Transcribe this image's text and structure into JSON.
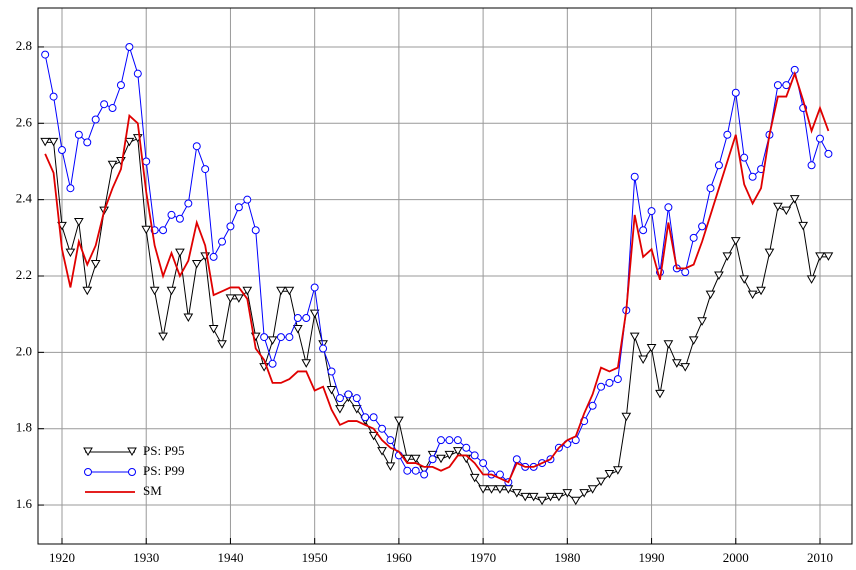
{
  "chart_data": {
    "type": "line",
    "x": [
      1918,
      1919,
      1920,
      1921,
      1922,
      1923,
      1924,
      1925,
      1926,
      1927,
      1928,
      1929,
      1930,
      1931,
      1932,
      1933,
      1934,
      1935,
      1936,
      1937,
      1938,
      1939,
      1940,
      1941,
      1942,
      1943,
      1944,
      1945,
      1946,
      1947,
      1948,
      1949,
      1950,
      1951,
      1952,
      1953,
      1954,
      1955,
      1956,
      1957,
      1958,
      1959,
      1960,
      1961,
      1962,
      1963,
      1964,
      1965,
      1966,
      1967,
      1968,
      1969,
      1970,
      1971,
      1972,
      1973,
      1974,
      1975,
      1976,
      1977,
      1978,
      1979,
      1980,
      1981,
      1982,
      1983,
      1984,
      1985,
      1986,
      1987,
      1988,
      1989,
      1990,
      1991,
      1992,
      1993,
      1994,
      1995,
      1996,
      1997,
      1998,
      1999,
      2000,
      2001,
      2002,
      2003,
      2004,
      2005,
      2006,
      2007,
      2008,
      2009,
      2010,
      2011
    ],
    "series": [
      {
        "name": "PS: P95",
        "color": "#000000",
        "marker": "triangle",
        "values": [
          2.55,
          2.55,
          2.33,
          2.26,
          2.34,
          2.16,
          2.23,
          2.37,
          2.49,
          2.5,
          2.55,
          2.56,
          2.32,
          2.16,
          2.04,
          2.16,
          2.26,
          2.09,
          2.23,
          2.25,
          2.06,
          2.02,
          2.14,
          2.14,
          2.16,
          2.04,
          1.96,
          2.03,
          2.16,
          2.16,
          2.06,
          1.97,
          2.1,
          2.02,
          1.9,
          1.85,
          1.88,
          1.85,
          1.82,
          1.78,
          1.74,
          1.7,
          1.82,
          1.72,
          1.72,
          1.69,
          1.73,
          1.72,
          1.73,
          1.74,
          1.72,
          1.67,
          1.64,
          1.64,
          1.64,
          1.64,
          1.63,
          1.62,
          1.62,
          1.61,
          1.62,
          1.62,
          1.63,
          1.61,
          1.63,
          1.64,
          1.66,
          1.68,
          1.69,
          1.83,
          2.04,
          1.98,
          2.01,
          1.89,
          2.02,
          1.97,
          1.96,
          2.03,
          2.08,
          2.15,
          2.2,
          2.25,
          2.29,
          2.19,
          2.15,
          2.16,
          2.26,
          2.38,
          2.37,
          2.4,
          2.33,
          2.19,
          2.25,
          2.25
        ]
      },
      {
        "name": "PS: P99",
        "color": "#0000ff",
        "marker": "circle",
        "values": [
          2.78,
          2.67,
          2.53,
          2.43,
          2.57,
          2.55,
          2.61,
          2.65,
          2.64,
          2.7,
          2.8,
          2.73,
          2.5,
          2.32,
          2.32,
          2.36,
          2.35,
          2.39,
          2.54,
          2.48,
          2.25,
          2.29,
          2.33,
          2.38,
          2.4,
          2.32,
          2.04,
          1.97,
          2.04,
          2.04,
          2.09,
          2.09,
          2.17,
          2.01,
          1.95,
          1.88,
          1.89,
          1.88,
          1.83,
          1.83,
          1.8,
          1.77,
          1.73,
          1.69,
          1.69,
          1.68,
          1.72,
          1.77,
          1.77,
          1.77,
          1.75,
          1.73,
          1.71,
          1.68,
          1.68,
          1.66,
          1.72,
          1.7,
          1.7,
          1.71,
          1.72,
          1.75,
          1.76,
          1.77,
          1.82,
          1.86,
          1.91,
          1.92,
          1.93,
          2.11,
          2.46,
          2.32,
          2.37,
          2.21,
          2.38,
          2.22,
          2.21,
          2.3,
          2.33,
          2.43,
          2.49,
          2.57,
          2.68,
          2.51,
          2.46,
          2.48,
          2.57,
          2.7,
          2.7,
          2.74,
          2.64,
          2.49,
          2.56,
          2.52
        ]
      },
      {
        "name": "SM",
        "color": "#e00000",
        "values": [
          2.52,
          2.47,
          2.27,
          2.17,
          2.29,
          2.23,
          2.28,
          2.37,
          2.43,
          2.48,
          2.62,
          2.6,
          2.42,
          2.28,
          2.2,
          2.26,
          2.2,
          2.24,
          2.34,
          2.28,
          2.15,
          2.16,
          2.17,
          2.17,
          2.14,
          2.01,
          1.98,
          1.92,
          1.92,
          1.93,
          1.95,
          1.95,
          1.9,
          1.91,
          1.85,
          1.81,
          1.82,
          1.82,
          1.81,
          1.8,
          1.77,
          1.75,
          1.74,
          1.71,
          1.71,
          1.7,
          1.7,
          1.69,
          1.7,
          1.73,
          1.73,
          1.71,
          1.68,
          1.68,
          1.67,
          1.66,
          1.71,
          1.7,
          1.7,
          1.71,
          1.72,
          1.75,
          1.77,
          1.78,
          1.84,
          1.89,
          1.96,
          1.95,
          1.96,
          2.11,
          2.36,
          2.25,
          2.27,
          2.19,
          2.34,
          2.22,
          2.22,
          2.23,
          2.29,
          2.36,
          2.43,
          2.5,
          2.57,
          2.44,
          2.39,
          2.43,
          2.57,
          2.67,
          2.67,
          2.73,
          2.66,
          2.58,
          2.64,
          2.58
        ]
      }
    ],
    "xlim": [
      1917.15,
      2013.8
    ],
    "xticks": [
      1920,
      1930,
      1940,
      1950,
      1960,
      1970,
      1980,
      1990,
      2000,
      2010
    ],
    "ylim": [
      1.498,
      2.902
    ],
    "yticks": [
      1.6,
      1.8,
      {
        "value": 2,
        "label": "2.0"
      },
      2.2,
      2.4,
      2.6,
      2.8
    ],
    "grid": true,
    "legend": "lower-left"
  }
}
